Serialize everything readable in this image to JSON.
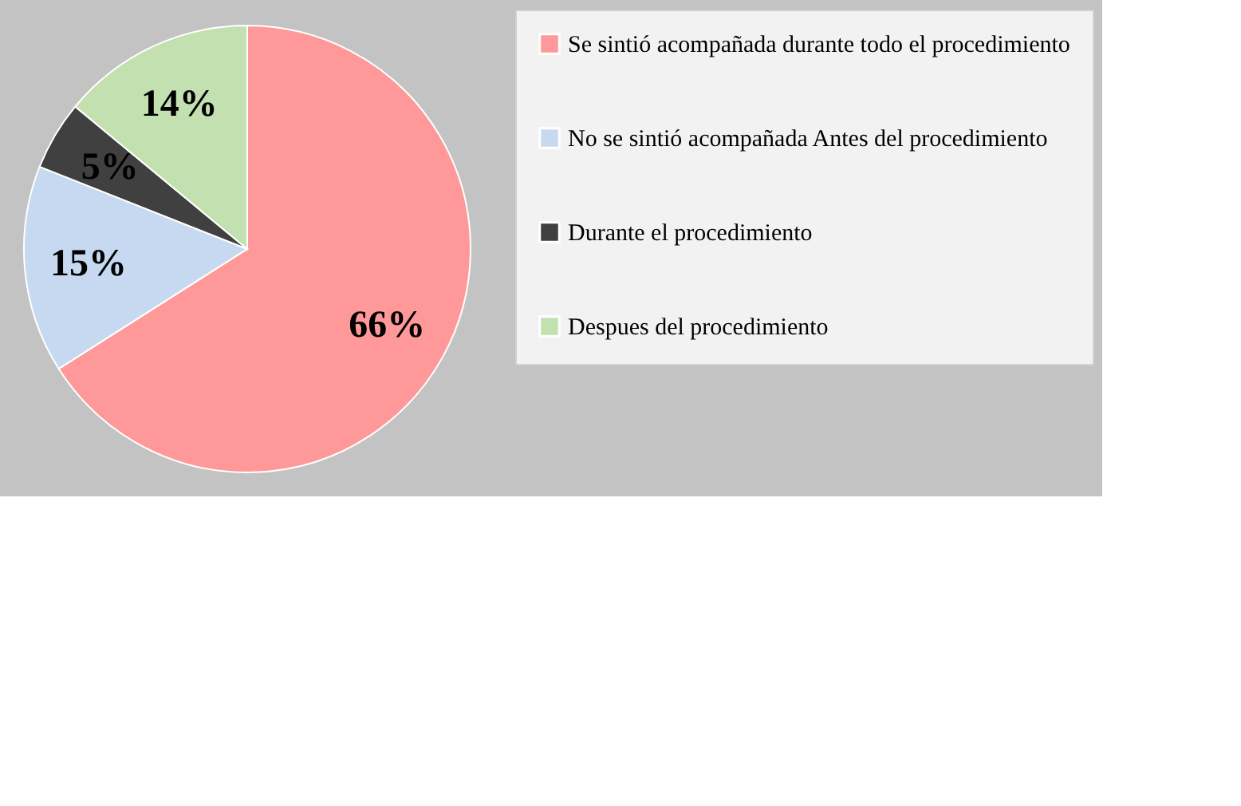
{
  "chart_data": {
    "type": "pie",
    "categories": [
      "Se sintió acompañada durante todo el procedimiento",
      "No se sintió acompañada Antes del procedimiento",
      "Durante el procedimiento",
      "Despues del procedimiento"
    ],
    "values": [
      66,
      15,
      5,
      14
    ],
    "colors": [
      "#ff9999",
      "#c6d9f1",
      "#404040",
      "#c3e0b0"
    ],
    "value_labels": [
      "66%",
      "15%",
      "5%",
      "14%"
    ],
    "legend": "right"
  }
}
